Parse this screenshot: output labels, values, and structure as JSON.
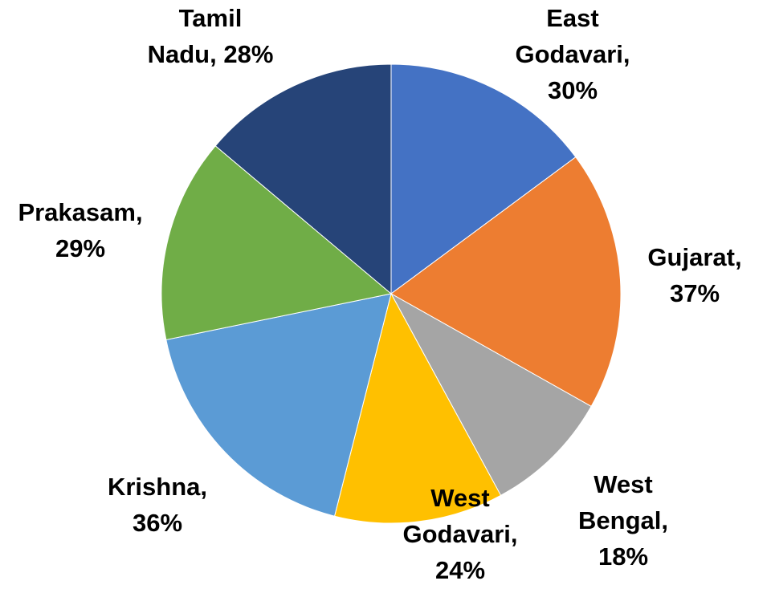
{
  "chart_data": {
    "type": "pie",
    "title": "",
    "slices": [
      {
        "label": "East Godavari",
        "value": 30,
        "display": "30%",
        "color": "#4472C4",
        "label_lines": [
          "East",
          "Godavari,",
          "30%"
        ]
      },
      {
        "label": "Gujarat",
        "value": 37,
        "display": "37%",
        "color": "#ED7D31",
        "label_lines": [
          "Gujarat,",
          "37%"
        ]
      },
      {
        "label": "West Bengal",
        "value": 18,
        "display": "18%",
        "color": "#A5A5A5",
        "label_lines": [
          "West",
          "Bengal,",
          "18%"
        ]
      },
      {
        "label": "West Godavari",
        "value": 24,
        "display": "24%",
        "color": "#FFC000",
        "label_lines": [
          "West",
          "Godavari,",
          "24%"
        ]
      },
      {
        "label": "Krishna",
        "value": 36,
        "display": "36%",
        "color": "#5B9BD5",
        "label_lines": [
          "Krishna,",
          "36%"
        ]
      },
      {
        "label": "Prakasam",
        "value": 29,
        "display": "29%",
        "color": "#70AD47",
        "label_lines": [
          "Prakasam,",
          "29%"
        ]
      },
      {
        "label": "Tamil Nadu",
        "value": 28,
        "display": "28%",
        "color": "#264478",
        "label_lines": [
          "Tamil",
          "Nadu, 28%"
        ]
      }
    ],
    "legend": "none",
    "data_labels": "outside"
  }
}
